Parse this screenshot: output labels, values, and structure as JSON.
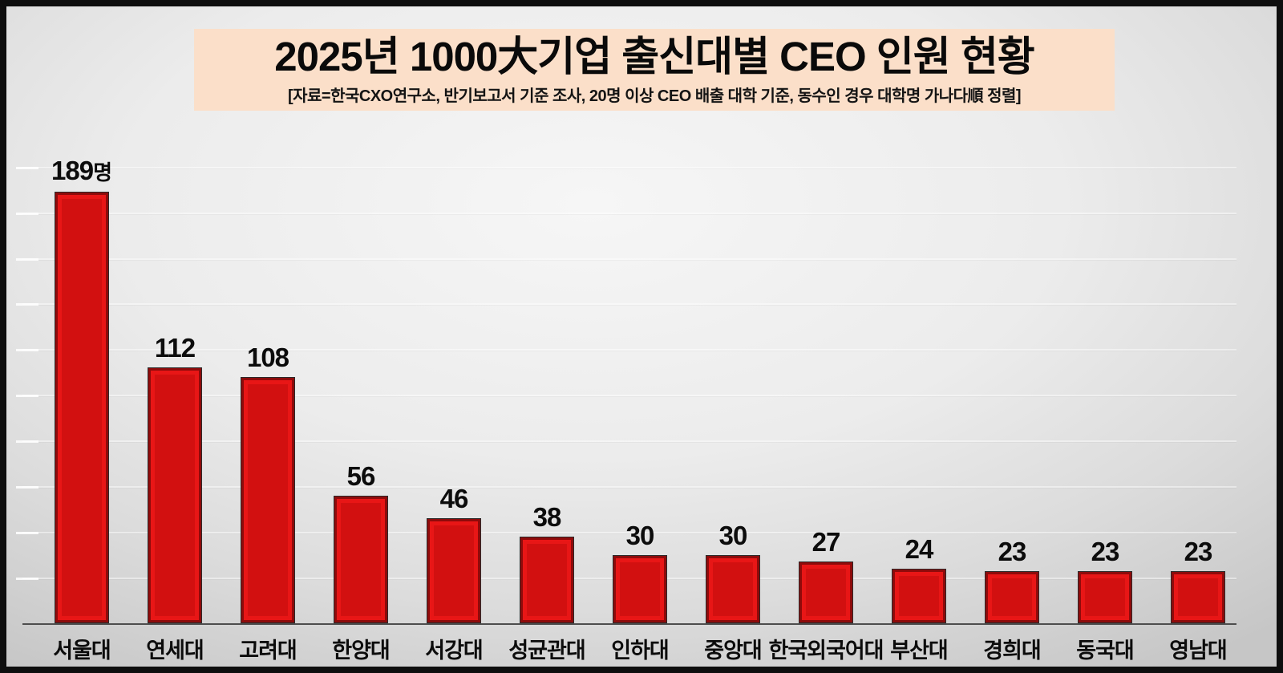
{
  "header": {
    "title": "2025년 1000大기업 출신대별 CEO 인원 현황",
    "subtitle": "[자료=한국CXO연구소, 반기보고서 기준 조사, 20명 이상 CEO 배출 대학 기준, 동수인 경우 대학명 가나다順  정렬]"
  },
  "chart_data": {
    "type": "bar",
    "title": "2025년 1000大기업 출신대별 CEO 인원 현황",
    "subtitle": "[자료=한국CXO연구소, 반기보고서 기준 조사, 20명 이상 CEO 배출 대학 기준, 동수인 경우 대학명 가나다順  정렬]",
    "categories": [
      "서울대",
      "연세대",
      "고려대",
      "한양대",
      "서강대",
      "성균관대",
      "인하대",
      "중앙대",
      "한국외국어대",
      "부산대",
      "경희대",
      "동국대",
      "영남대"
    ],
    "values": [
      189,
      112,
      108,
      56,
      46,
      38,
      30,
      30,
      27,
      24,
      23,
      23,
      23
    ],
    "first_value_suffix": "명",
    "xlabel": "",
    "ylabel": "",
    "ylim": [
      0,
      200
    ],
    "gridline_step": 20,
    "grid": "horizontal-faint",
    "legend": "none",
    "colors": {
      "bar_face": "#e81616",
      "bar_frame": "#8f0b0b",
      "bar_center": "#d21010",
      "bar_outline": "#2b2b2b",
      "title_bg": "#fbdfc9",
      "background": "#e6e6e6",
      "axis": "#4d4d4d",
      "text": "#0c0c0c"
    }
  }
}
